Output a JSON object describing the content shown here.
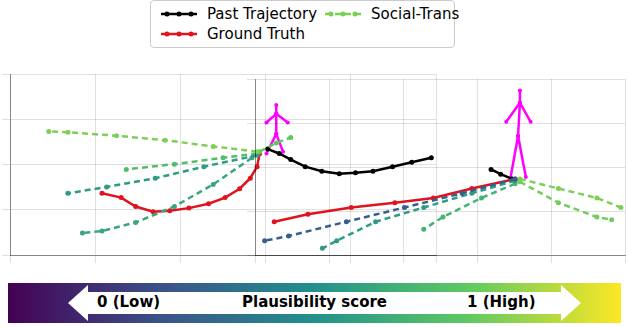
{
  "chart_data": {
    "type": "line",
    "tick_labels": false,
    "grid": true,
    "legend": "top",
    "series": [
      {
        "name": "Past Trajectory",
        "color": "#000000",
        "line_style": "solid",
        "marker": "circle"
      },
      {
        "name": "Ground Truth",
        "color": "#e0141e",
        "line_style": "solid",
        "marker": "circle"
      },
      {
        "name": "Social-Trans",
        "color": "#7ad151",
        "line_style": "dashed",
        "marker": "circle"
      }
    ],
    "panels": [
      {
        "xlim": [
          0,
          100
        ],
        "ylim": [
          0,
          100
        ],
        "xticks": [
          0,
          20,
          40,
          60,
          80,
          100
        ],
        "yticks": [
          0,
          25,
          50,
          75,
          100
        ],
        "past": {
          "x": [
            98.9,
            94.3,
            89.8,
            85.2,
            81.1,
            77.3,
            73.2,
            69.3,
            65.9,
            63.2,
            60.5
          ],
          "y": [
            53.7,
            51.2,
            48.8,
            46.3,
            45.4,
            44.9,
            46.3,
            48.8,
            52.7,
            56.1,
            58.5
          ]
        },
        "ground_truth": {
          "x": [
            58.6,
            58.0,
            56.4,
            53.9,
            50.5,
            46.6,
            42.0,
            37.5,
            33.6,
            29.5,
            26.1,
            21.6
          ],
          "y": [
            56.1,
            48.8,
            42.4,
            36.6,
            31.7,
            28.3,
            25.9,
            24.4,
            23.9,
            26.8,
            31.7,
            34.1
          ]
        },
        "predictions": [
          {
            "score": 0.8,
            "x": [
              58.0,
              47.7,
              36.4,
              25.0,
              13.6,
              9.1
            ],
            "y": [
              57.1,
              60.0,
              63.4,
              65.9,
              67.8,
              68.3
            ]
          },
          {
            "score": 0.75,
            "x": [
              58.6,
              62.5,
              65.9
            ],
            "y": [
              57.1,
              61.9,
              64.9
            ]
          },
          {
            "score": 0.55,
            "x": [
              58.0,
              45.5,
              34.1,
              22.7,
              13.6
            ],
            "y": [
              55.1,
              48.8,
              42.4,
              37.6,
              34.1
            ]
          },
          {
            "score": 0.6,
            "x": [
              56.8,
              47.7,
              38.6,
              29.5,
              21.6,
              17.0
            ],
            "y": [
              53.7,
              39.0,
              26.8,
              18.0,
              13.2,
              12.2
            ]
          },
          {
            "score": 0.7,
            "x": [
              58.0,
              50.0,
              38.6,
              27.3
            ],
            "y": [
              56.1,
              53.7,
              50.2,
              47.3
            ]
          }
        ],
        "pose": {
          "color": "#ff00ff",
          "segments": [
            [
              [
                62.5,
                82.9
              ],
              [
                62.5,
                78.0
              ]
            ],
            [
              [
                62.5,
                78.0
              ],
              [
                62.5,
                66.8
              ]
            ],
            [
              [
                62.5,
                66.8
              ],
              [
                60.2,
                56.1
              ]
            ],
            [
              [
                62.5,
                66.8
              ],
              [
                64.1,
                57.1
              ]
            ],
            [
              [
                62.5,
                78.0
              ],
              [
                60.2,
                73.2
              ]
            ],
            [
              [
                62.5,
                78.0
              ],
              [
                65.2,
                73.2
              ]
            ]
          ]
        }
      },
      {
        "xlim": [
          0,
          100
        ],
        "ylim": [
          0,
          100
        ],
        "xticks": [
          0,
          20,
          40,
          60,
          80,
          100
        ],
        "yticks": [
          0,
          25,
          50,
          75,
          100
        ],
        "past": {
          "x": [
            63.8,
            66.4,
            69.5
          ],
          "y": [
            48.6,
            45.9,
            43.2
          ]
        },
        "ground_truth": {
          "x": [
            70.3,
            58.6,
            48.2,
            37.8,
            26.0,
            14.3,
            5.2
          ],
          "y": [
            43.2,
            37.8,
            32.4,
            29.7,
            27.0,
            23.2,
            18.9
          ]
        },
        "predictions": [
          {
            "score": 0.3,
            "x": [
              70.3,
              56.0,
              40.4,
              24.7,
              9.1,
              2.6
            ],
            "y": [
              43.2,
              35.1,
              27.0,
              18.9,
              10.8,
              8.1
            ]
          },
          {
            "score": 0.55,
            "x": [
              70.3,
              58.6,
              45.6,
              32.6,
              22.1,
              18.2
            ],
            "y": [
              42.2,
              35.1,
              27.0,
              18.9,
              8.1,
              3.8
            ]
          },
          {
            "score": 0.8,
            "x": [
              71.6,
              82.0,
              92.4,
              98.9
            ],
            "y": [
              43.2,
              37.8,
              32.4,
              27.0
            ]
          },
          {
            "score": 0.78,
            "x": [
              71.6,
              82.0,
              92.4,
              96.4
            ],
            "y": [
              41.6,
              29.7,
              21.6,
              20.0
            ]
          },
          {
            "score": 0.65,
            "x": [
              70.3,
              61.2,
              50.8,
              45.6
            ],
            "y": [
              40.5,
              32.4,
              21.6,
              14.6
            ]
          }
        ],
        "pose": {
          "color": "#ff00ff",
          "segments": [
            [
              [
                71.6,
                93.5
              ],
              [
                71.6,
                86.5
              ]
            ],
            [
              [
                71.6,
                86.5
              ],
              [
                71.1,
                67.6
              ]
            ],
            [
              [
                71.1,
                67.6
              ],
              [
                69.0,
                43.2
              ]
            ],
            [
              [
                71.1,
                67.6
              ],
              [
                73.2,
                44.3
              ]
            ],
            [
              [
                71.6,
                86.5
              ],
              [
                67.9,
                75.7
              ]
            ],
            [
              [
                71.6,
                86.5
              ],
              [
                74.5,
                75.7
              ]
            ]
          ]
        }
      }
    ],
    "colorbar": {
      "title": "Plausibility score",
      "range": [
        0,
        1
      ],
      "ticks": [
        {
          "value": 0,
          "label": "0 (Low)"
        },
        {
          "value": 1,
          "label": "1 (High)"
        }
      ]
    }
  }
}
